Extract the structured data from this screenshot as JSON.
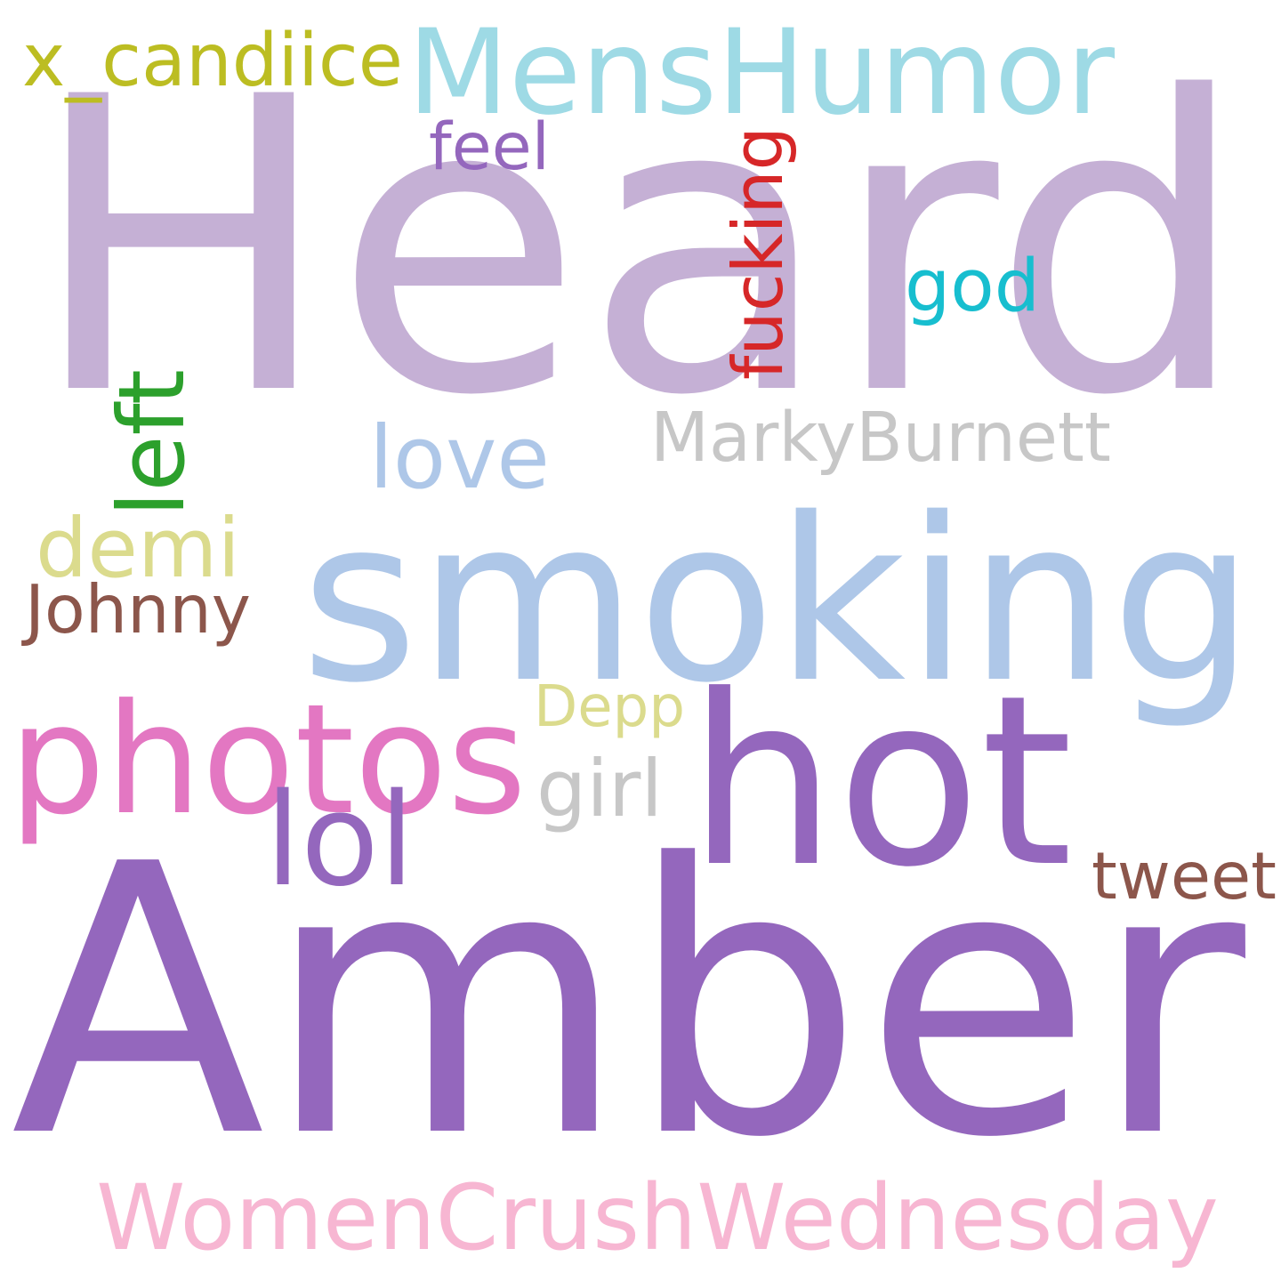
{
  "words": [
    {
      "id": "heard",
      "text": "Heard",
      "color": "#c5b0d5",
      "orientation": "horizontal"
    },
    {
      "id": "amber",
      "text": "Amber",
      "color": "#9467bd",
      "orientation": "horizontal"
    },
    {
      "id": "smoking",
      "text": "smoking",
      "color": "#aec7e8",
      "orientation": "horizontal"
    },
    {
      "id": "hot",
      "text": "hot",
      "color": "#9467bd",
      "orientation": "horizontal"
    },
    {
      "id": "photos",
      "text": "photos",
      "color": "#e377c2",
      "orientation": "horizontal"
    },
    {
      "id": "menshumor",
      "text": "MensHumor",
      "color": "#9edae5",
      "orientation": "horizontal"
    },
    {
      "id": "womencrushwednesday",
      "text": "WomenCrushWednesday",
      "color": "#f7b6d2",
      "orientation": "horizontal"
    },
    {
      "id": "x-candiice",
      "text": "x_candiice",
      "color": "#bcbd22",
      "orientation": "horizontal"
    },
    {
      "id": "markyburnett",
      "text": "MarkyBurnett",
      "color": "#c7c7c7",
      "orientation": "horizontal"
    },
    {
      "id": "demi",
      "text": "demi",
      "color": "#dbdb8d",
      "orientation": "horizontal"
    },
    {
      "id": "love",
      "text": "love",
      "color": "#aec7e8",
      "orientation": "horizontal"
    },
    {
      "id": "god",
      "text": "god",
      "color": "#17becf",
      "orientation": "horizontal"
    },
    {
      "id": "johnny",
      "text": "Johnny",
      "color": "#8c564b",
      "orientation": "horizontal"
    },
    {
      "id": "lol",
      "text": "lol",
      "color": "#9467bd",
      "orientation": "horizontal"
    },
    {
      "id": "tweet",
      "text": "tweet",
      "color": "#8c564b",
      "orientation": "horizontal"
    },
    {
      "id": "depp",
      "text": "Depp",
      "color": "#dbdb8d",
      "orientation": "horizontal"
    },
    {
      "id": "girl",
      "text": "girl",
      "color": "#c7c7c7",
      "orientation": "horizontal"
    },
    {
      "id": "feel",
      "text": "feel",
      "color": "#9467bd",
      "orientation": "horizontal"
    },
    {
      "id": "fucking",
      "text": "fucking",
      "color": "#d62728",
      "orientation": "vertical"
    },
    {
      "id": "left",
      "text": "left",
      "color": "#2ca02c",
      "orientation": "vertical"
    }
  ]
}
